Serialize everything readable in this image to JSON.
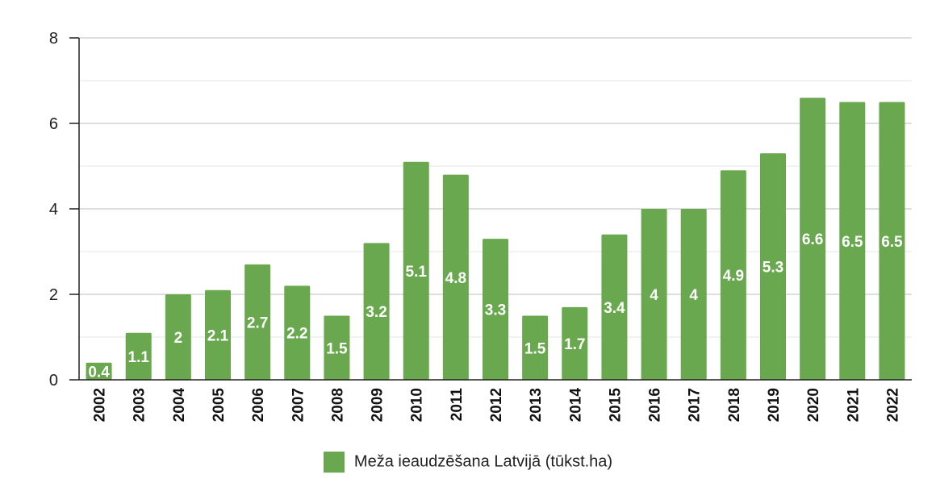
{
  "chart_data": {
    "type": "bar",
    "categories": [
      "2002",
      "2003",
      "2004",
      "2005",
      "2006",
      "2007",
      "2008",
      "2009",
      "2010",
      "2011",
      "2012",
      "2013",
      "2014",
      "2015",
      "2016",
      "2017",
      "2018",
      "2019",
      "2020",
      "2021",
      "2022"
    ],
    "values": [
      0.4,
      1.1,
      2,
      2.1,
      2.7,
      2.2,
      1.5,
      3.2,
      5.1,
      4.8,
      3.3,
      1.5,
      1.7,
      3.4,
      4,
      4,
      4.9,
      5.3,
      6.6,
      6.5,
      6.5
    ],
    "data_labels": [
      "0.4",
      "1.1",
      "2",
      "2.1",
      "2.7",
      "2.2",
      "1.5",
      "3.2",
      "5.1",
      "4.8",
      "3.3",
      "1.5",
      "1.7",
      "3.4",
      "4",
      "4",
      "4.9",
      "5.3",
      "6.6",
      "6.5",
      "6.5"
    ],
    "series": [
      {
        "name": "Meža ieaudzēšana Latvijā (tūkst.ha)",
        "color": "#6aa84f"
      }
    ],
    "yticks": [
      "0",
      "2",
      "4",
      "6",
      "8"
    ],
    "ylim": [
      0,
      8
    ],
    "grid": true,
    "legend_position": "bottom",
    "title": "",
    "xlabel": "",
    "ylabel": ""
  }
}
